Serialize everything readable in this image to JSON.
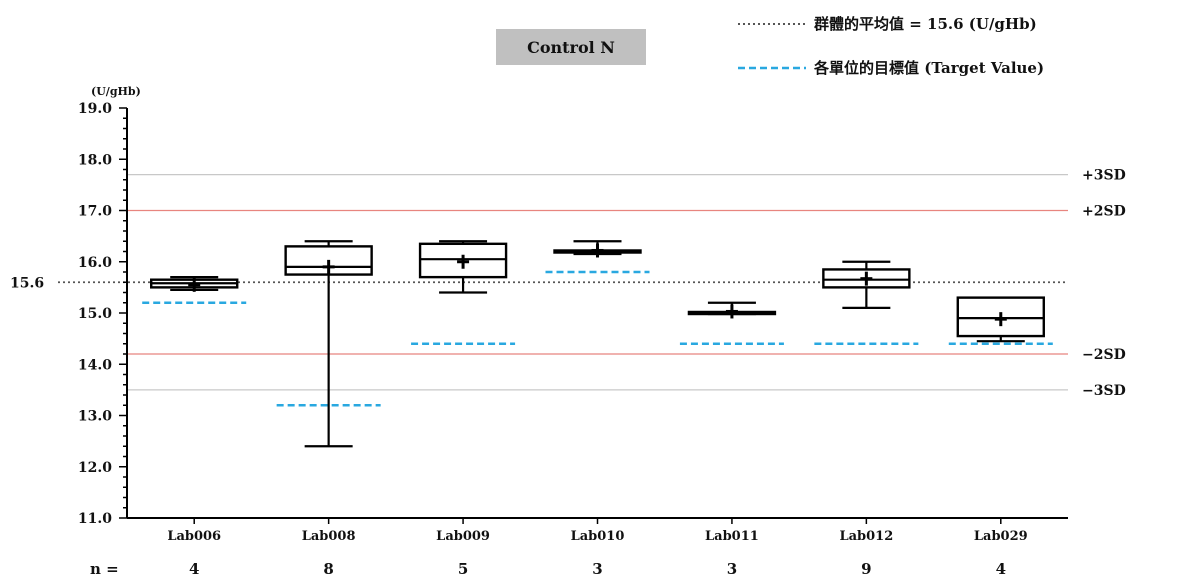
{
  "chart_data": {
    "type": "boxplot",
    "title": "Control N",
    "ylabel": "(U/gHb)",
    "ylim": [
      11.0,
      19.0
    ],
    "yticks": [
      "11.0",
      "12.0",
      "13.0",
      "14.0",
      "15.0",
      "16.0",
      "17.0",
      "18.0",
      "19.0"
    ],
    "mean": {
      "value": 15.6,
      "label": "15.6"
    },
    "reference_lines": [
      {
        "label": "+3SD",
        "value": 17.7,
        "color": "#c8c8c8"
      },
      {
        "label": "+2SD",
        "value": 17.0,
        "color": "#e8857f"
      },
      {
        "label": "−2SD",
        "value": 14.2,
        "color": "#e8857f"
      },
      {
        "label": "−3SD",
        "value": 13.5,
        "color": "#c8c8c8"
      }
    ],
    "legend": {
      "mean_text": "群體的平均值 = 15.6 (U/gHb)",
      "target_text": "各單位的目標值 (Target Value)"
    },
    "n_prefix": "n =",
    "categories": [
      "Lab006",
      "Lab008",
      "Lab009",
      "Lab010",
      "Lab011",
      "Lab012",
      "Lab029"
    ],
    "n": [
      "4",
      "8",
      "5",
      "3",
      "3",
      "9",
      "4"
    ],
    "boxes": [
      {
        "min": 15.45,
        "q1": 15.5,
        "median": 15.58,
        "q3": 15.65,
        "max": 15.7,
        "mean": 15.55,
        "target": 15.2
      },
      {
        "min": 12.4,
        "q1": 15.75,
        "median": 15.9,
        "q3": 16.3,
        "max": 16.4,
        "mean": 15.9,
        "target": 13.2
      },
      {
        "min": 15.4,
        "q1": 15.7,
        "median": 16.05,
        "q3": 16.35,
        "max": 16.4,
        "mean": 16.0,
        "target": 14.4
      },
      {
        "min": 16.15,
        "q1": 16.18,
        "median": 16.2,
        "q3": 16.22,
        "max": 16.4,
        "mean": 16.22,
        "target": 15.8
      },
      {
        "min": 14.98,
        "q1": 14.98,
        "median": 15.0,
        "q3": 15.02,
        "max": 15.2,
        "mean": 15.03,
        "target": 14.4
      },
      {
        "min": 15.1,
        "q1": 15.5,
        "median": 15.65,
        "q3": 15.85,
        "max": 16.0,
        "mean": 15.67,
        "target": 14.4
      },
      {
        "min": 14.45,
        "q1": 14.55,
        "median": 14.9,
        "q3": 15.3,
        "max": 15.3,
        "mean": 14.88,
        "target": 14.4
      }
    ],
    "colors": {
      "target": "#29a8e0",
      "mean_line": "#555555",
      "box": "#000000",
      "title_bg": "#c0c0c0"
    }
  }
}
